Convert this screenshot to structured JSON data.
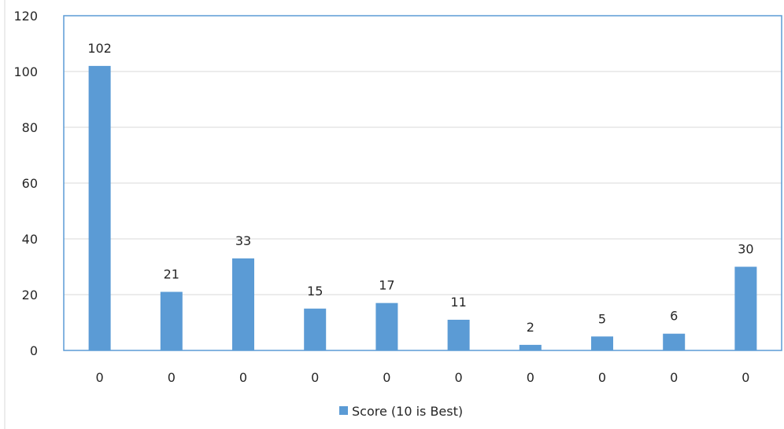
{
  "chart_data": {
    "type": "bar",
    "categories": [
      "0",
      "0",
      "0",
      "0",
      "0",
      "0",
      "0",
      "0",
      "0",
      "0"
    ],
    "series": [
      {
        "name": "Score (10 is Best)",
        "values": [
          102,
          21,
          33,
          15,
          17,
          11,
          2,
          5,
          6,
          30
        ]
      }
    ],
    "ylim": [
      0,
      120
    ],
    "yticks": [
      "0",
      "20",
      "40",
      "60",
      "80",
      "100",
      "120"
    ],
    "grid": true,
    "legend_position": "bottom",
    "colors": {
      "bar": "#5B9BD5",
      "plot_border": "#5B9BD5",
      "grid": "#D9D9D9",
      "text": "#262626"
    }
  }
}
